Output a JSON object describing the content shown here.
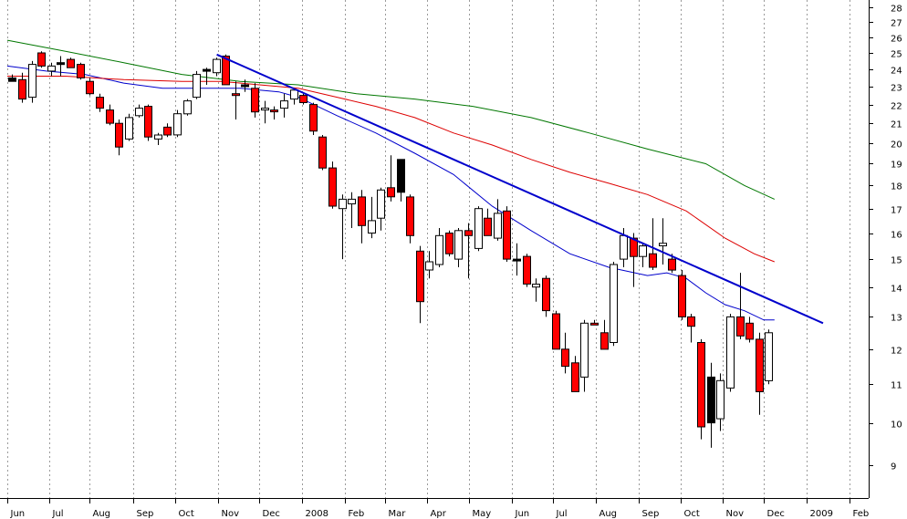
{
  "chart_data": {
    "type": "candlestick",
    "title": "",
    "xlabel": "",
    "ylabel": "",
    "y_scale": "log",
    "ylim": [
      8.3,
      28.5
    ],
    "y_ticks": [
      9,
      10,
      11,
      12,
      13,
      14,
      15,
      16,
      17,
      18,
      19,
      20,
      21,
      22,
      23,
      24,
      25,
      26,
      27,
      28
    ],
    "x_labels": [
      {
        "label": "Jun",
        "x": 0
      },
      {
        "label": "Jul",
        "x": 4.3
      },
      {
        "label": "Aug",
        "x": 8.5
      },
      {
        "label": "Sep",
        "x": 13.0
      },
      {
        "label": "Oct",
        "x": 17.3
      },
      {
        "label": "Nov",
        "x": 21.7
      },
      {
        "label": "Dec",
        "x": 26.0
      },
      {
        "label": "2008",
        "x": 30.4
      },
      {
        "label": "Feb",
        "x": 34.8
      },
      {
        "label": "Mar",
        "x": 38.9
      },
      {
        "label": "Apr",
        "x": 43.3
      },
      {
        "label": "May",
        "x": 47.6
      },
      {
        "label": "Jun",
        "x": 52.0
      },
      {
        "label": "Jul",
        "x": 56.3
      },
      {
        "label": "Aug",
        "x": 60.7
      },
      {
        "label": "Sep",
        "x": 65.1
      },
      {
        "label": "Oct",
        "x": 69.4
      },
      {
        "label": "Nov",
        "x": 73.8
      },
      {
        "label": "Dec",
        "x": 78.0
      },
      {
        "label": "2009",
        "x": 82.4
      },
      {
        "label": "Feb",
        "x": 86.8
      }
    ],
    "x_range": [
      0,
      89
    ],
    "grid": "vertical-dotted",
    "colors": {
      "up_body": "#ffffff",
      "down_body": "#ff0000",
      "outline": "#000000",
      "ma_short": "#0000cc",
      "ma_mid": "#dd0000",
      "ma_long": "#007700",
      "trendline": "#0000cc"
    },
    "candles": [
      {
        "x": 0.5,
        "o": 23.5,
        "h": 23.7,
        "l": 23.3,
        "c": 23.3,
        "color": "black"
      },
      {
        "x": 1.5,
        "o": 23.4,
        "h": 23.8,
        "l": 22.1,
        "c": 22.3,
        "color": "red"
      },
      {
        "x": 2.5,
        "o": 22.4,
        "h": 24.5,
        "l": 22.1,
        "c": 24.3,
        "color": "white"
      },
      {
        "x": 3.5,
        "o": 25.0,
        "h": 25.1,
        "l": 24.1,
        "c": 24.2,
        "color": "red"
      },
      {
        "x": 4.5,
        "o": 23.9,
        "h": 24.4,
        "l": 23.6,
        "c": 24.2,
        "color": "white"
      },
      {
        "x": 5.5,
        "o": 24.4,
        "h": 24.8,
        "l": 23.6,
        "c": 24.4,
        "color": "black"
      },
      {
        "x": 6.5,
        "o": 24.6,
        "h": 24.7,
        "l": 24.1,
        "c": 24.1,
        "color": "red"
      },
      {
        "x": 7.5,
        "o": 24.3,
        "h": 24.4,
        "l": 23.4,
        "c": 23.5,
        "color": "red"
      },
      {
        "x": 8.5,
        "o": 23.3,
        "h": 23.5,
        "l": 22.5,
        "c": 22.6,
        "color": "red"
      },
      {
        "x": 9.5,
        "o": 22.4,
        "h": 22.6,
        "l": 21.6,
        "c": 21.8,
        "color": "red"
      },
      {
        "x": 10.5,
        "o": 21.7,
        "h": 22.0,
        "l": 20.9,
        "c": 21.0,
        "color": "red"
      },
      {
        "x": 11.5,
        "o": 21.0,
        "h": 21.2,
        "l": 19.4,
        "c": 19.8,
        "color": "red"
      },
      {
        "x": 12.5,
        "o": 20.2,
        "h": 21.5,
        "l": 20.1,
        "c": 21.3,
        "color": "white"
      },
      {
        "x": 13.5,
        "o": 21.4,
        "h": 22.0,
        "l": 21.3,
        "c": 21.8,
        "color": "white"
      },
      {
        "x": 14.5,
        "o": 21.9,
        "h": 22.0,
        "l": 20.1,
        "c": 20.3,
        "color": "red"
      },
      {
        "x": 15.5,
        "o": 20.2,
        "h": 20.5,
        "l": 19.9,
        "c": 20.4,
        "color": "white"
      },
      {
        "x": 16.5,
        "o": 20.8,
        "h": 21.0,
        "l": 20.3,
        "c": 20.4,
        "color": "red"
      },
      {
        "x": 17.5,
        "o": 20.4,
        "h": 21.7,
        "l": 20.3,
        "c": 21.5,
        "color": "white"
      },
      {
        "x": 18.5,
        "o": 21.5,
        "h": 22.3,
        "l": 21.4,
        "c": 22.2,
        "color": "white"
      },
      {
        "x": 19.5,
        "o": 22.4,
        "h": 23.9,
        "l": 22.3,
        "c": 23.7,
        "color": "white"
      },
      {
        "x": 20.5,
        "o": 24.0,
        "h": 24.1,
        "l": 23.1,
        "c": 24.0,
        "color": "black"
      },
      {
        "x": 21.5,
        "o": 23.8,
        "h": 24.7,
        "l": 23.6,
        "c": 24.6,
        "color": "white"
      },
      {
        "x": 22.5,
        "o": 24.8,
        "h": 24.9,
        "l": 23.1,
        "c": 23.1,
        "color": "red"
      },
      {
        "x": 23.5,
        "o": 22.6,
        "h": 23.3,
        "l": 21.2,
        "c": 22.6,
        "color": "red"
      },
      {
        "x": 24.5,
        "o": 23.1,
        "h": 23.4,
        "l": 22.7,
        "c": 23.0,
        "color": "black"
      },
      {
        "x": 25.5,
        "o": 22.9,
        "h": 23.2,
        "l": 21.3,
        "c": 21.6,
        "color": "red"
      },
      {
        "x": 26.5,
        "o": 21.7,
        "h": 22.2,
        "l": 21.0,
        "c": 21.8,
        "color": "white"
      },
      {
        "x": 27.5,
        "o": 21.7,
        "h": 21.9,
        "l": 21.2,
        "c": 21.6,
        "color": "red"
      },
      {
        "x": 28.5,
        "o": 21.8,
        "h": 22.6,
        "l": 21.3,
        "c": 22.2,
        "color": "white"
      },
      {
        "x": 29.5,
        "o": 22.3,
        "h": 22.9,
        "l": 22.0,
        "c": 22.8,
        "color": "white"
      },
      {
        "x": 30.5,
        "o": 22.5,
        "h": 22.6,
        "l": 22.0,
        "c": 22.1,
        "color": "red"
      },
      {
        "x": 31.5,
        "o": 22.0,
        "h": 22.1,
        "l": 20.4,
        "c": 20.6,
        "color": "red"
      },
      {
        "x": 32.5,
        "o": 20.3,
        "h": 20.4,
        "l": 18.7,
        "c": 18.8,
        "color": "red"
      },
      {
        "x": 33.5,
        "o": 18.8,
        "h": 19.1,
        "l": 17.0,
        "c": 17.1,
        "color": "red"
      },
      {
        "x": 34.5,
        "o": 17.0,
        "h": 17.6,
        "l": 15.0,
        "c": 17.4,
        "color": "white"
      },
      {
        "x": 35.5,
        "o": 17.4,
        "h": 17.7,
        "l": 16.2,
        "c": 17.2,
        "color": "white"
      },
      {
        "x": 36.5,
        "o": 17.5,
        "h": 17.8,
        "l": 15.6,
        "c": 16.3,
        "color": "red"
      },
      {
        "x": 37.5,
        "o": 16.0,
        "h": 17.5,
        "l": 15.8,
        "c": 16.5,
        "color": "white"
      },
      {
        "x": 38.5,
        "o": 16.6,
        "h": 17.9,
        "l": 16.1,
        "c": 17.8,
        "color": "white"
      },
      {
        "x": 39.5,
        "o": 17.9,
        "h": 19.4,
        "l": 17.3,
        "c": 17.5,
        "color": "red"
      },
      {
        "x": 40.5,
        "o": 17.7,
        "h": 19.2,
        "l": 17.3,
        "c": 19.2,
        "color": "black"
      },
      {
        "x": 41.5,
        "o": 17.5,
        "h": 17.6,
        "l": 15.6,
        "c": 15.9,
        "color": "red"
      },
      {
        "x": 42.5,
        "o": 15.3,
        "h": 15.5,
        "l": 12.8,
        "c": 13.5,
        "color": "red"
      },
      {
        "x": 43.5,
        "o": 14.6,
        "h": 15.3,
        "l": 14.3,
        "c": 14.9,
        "color": "white"
      },
      {
        "x": 44.5,
        "o": 14.8,
        "h": 16.2,
        "l": 14.7,
        "c": 15.9,
        "color": "white"
      },
      {
        "x": 45.5,
        "o": 16.0,
        "h": 16.1,
        "l": 15.1,
        "c": 15.2,
        "color": "red"
      },
      {
        "x": 46.5,
        "o": 15.0,
        "h": 16.2,
        "l": 14.7,
        "c": 16.1,
        "color": "white"
      },
      {
        "x": 47.5,
        "o": 16.1,
        "h": 16.4,
        "l": 14.3,
        "c": 15.9,
        "color": "red"
      },
      {
        "x": 48.5,
        "o": 15.4,
        "h": 17.1,
        "l": 15.3,
        "c": 17.0,
        "color": "white"
      },
      {
        "x": 49.5,
        "o": 16.6,
        "h": 17.0,
        "l": 15.9,
        "c": 15.9,
        "color": "red"
      },
      {
        "x": 50.5,
        "o": 15.8,
        "h": 17.4,
        "l": 15.7,
        "c": 16.8,
        "color": "white"
      },
      {
        "x": 51.5,
        "o": 16.9,
        "h": 17.1,
        "l": 14.9,
        "c": 15.0,
        "color": "red"
      },
      {
        "x": 52.5,
        "o": 15.0,
        "h": 15.6,
        "l": 14.4,
        "c": 15.0,
        "color": "black"
      },
      {
        "x": 53.5,
        "o": 15.1,
        "h": 15.2,
        "l": 14.0,
        "c": 14.1,
        "color": "red"
      },
      {
        "x": 54.5,
        "o": 14.1,
        "h": 14.3,
        "l": 13.5,
        "c": 14.0,
        "color": "white"
      },
      {
        "x": 55.5,
        "o": 14.3,
        "h": 14.4,
        "l": 13.0,
        "c": 13.2,
        "color": "red"
      },
      {
        "x": 56.5,
        "o": 13.1,
        "h": 13.2,
        "l": 12.0,
        "c": 12.0,
        "color": "red"
      },
      {
        "x": 57.5,
        "o": 12.0,
        "h": 12.5,
        "l": 11.3,
        "c": 11.5,
        "color": "red"
      },
      {
        "x": 58.5,
        "o": 11.6,
        "h": 11.8,
        "l": 10.8,
        "c": 10.8,
        "color": "red"
      },
      {
        "x": 59.5,
        "o": 11.2,
        "h": 12.9,
        "l": 10.8,
        "c": 12.8,
        "color": "white"
      },
      {
        "x": 60.5,
        "o": 12.8,
        "h": 12.9,
        "l": 12.8,
        "c": 12.8,
        "color": "red"
      },
      {
        "x": 61.5,
        "o": 12.5,
        "h": 12.9,
        "l": 12.1,
        "c": 12.0,
        "color": "red"
      },
      {
        "x": 62.5,
        "o": 12.2,
        "h": 14.9,
        "l": 12.1,
        "c": 14.8,
        "color": "white"
      },
      {
        "x": 63.5,
        "o": 15.0,
        "h": 16.2,
        "l": 14.7,
        "c": 15.9,
        "color": "white"
      },
      {
        "x": 64.5,
        "o": 15.8,
        "h": 16.0,
        "l": 14.0,
        "c": 15.1,
        "color": "red"
      },
      {
        "x": 65.5,
        "o": 15.1,
        "h": 15.6,
        "l": 14.7,
        "c": 15.5,
        "color": "white"
      },
      {
        "x": 66.5,
        "o": 15.2,
        "h": 16.6,
        "l": 14.6,
        "c": 14.7,
        "color": "red"
      },
      {
        "x": 67.5,
        "o": 15.5,
        "h": 16.6,
        "l": 14.8,
        "c": 15.6,
        "color": "white"
      },
      {
        "x": 68.5,
        "o": 15.0,
        "h": 15.2,
        "l": 14.5,
        "c": 14.6,
        "color": "red"
      },
      {
        "x": 69.5,
        "o": 14.4,
        "h": 14.6,
        "l": 12.9,
        "c": 13.0,
        "color": "red"
      },
      {
        "x": 70.5,
        "o": 13.0,
        "h": 13.1,
        "l": 12.2,
        "c": 12.7,
        "color": "red"
      },
      {
        "x": 71.5,
        "o": 12.2,
        "h": 12.3,
        "l": 9.6,
        "c": 9.9,
        "color": "red"
      },
      {
        "x": 72.5,
        "o": 10.0,
        "h": 11.6,
        "l": 9.4,
        "c": 11.2,
        "color": "black"
      },
      {
        "x": 73.5,
        "o": 10.1,
        "h": 11.3,
        "l": 9.8,
        "c": 11.1,
        "color": "white"
      },
      {
        "x": 74.5,
        "o": 10.9,
        "h": 13.1,
        "l": 10.8,
        "c": 13.0,
        "color": "white"
      },
      {
        "x": 75.5,
        "o": 13.0,
        "h": 14.5,
        "l": 12.3,
        "c": 12.4,
        "color": "red"
      },
      {
        "x": 76.5,
        "o": 12.8,
        "h": 13.0,
        "l": 12.2,
        "c": 12.3,
        "color": "red"
      },
      {
        "x": 77.5,
        "o": 12.3,
        "h": 12.5,
        "l": 10.2,
        "c": 10.8,
        "color": "red"
      },
      {
        "x": 78.5,
        "o": 11.1,
        "h": 12.6,
        "l": 11.0,
        "c": 12.5,
        "color": "white"
      }
    ],
    "moving_averages": [
      {
        "color": "#0000cc",
        "points": [
          [
            0,
            24.2
          ],
          [
            4,
            23.9
          ],
          [
            8,
            23.7
          ],
          [
            12,
            23.2
          ],
          [
            16,
            22.9
          ],
          [
            20,
            22.9
          ],
          [
            24,
            22.9
          ],
          [
            28,
            22.7
          ],
          [
            30,
            22.4
          ],
          [
            34,
            21.4
          ],
          [
            38,
            20.5
          ],
          [
            42,
            19.5
          ],
          [
            46,
            18.5
          ],
          [
            50,
            17.1
          ],
          [
            54,
            16.1
          ],
          [
            58,
            15.2
          ],
          [
            62,
            14.7
          ],
          [
            66,
            14.4
          ],
          [
            68,
            14.5
          ],
          [
            70,
            14.3
          ],
          [
            72,
            13.8
          ],
          [
            74,
            13.4
          ],
          [
            76,
            13.2
          ],
          [
            78,
            12.9
          ],
          [
            79.1,
            12.9
          ]
        ]
      },
      {
        "color": "#dd0000",
        "points": [
          [
            0,
            23.6
          ],
          [
            6,
            23.6
          ],
          [
            12,
            23.4
          ],
          [
            18,
            23.3
          ],
          [
            22,
            23.3
          ],
          [
            26,
            23.1
          ],
          [
            30,
            22.9
          ],
          [
            34,
            22.4
          ],
          [
            38,
            21.9
          ],
          [
            42,
            21.3
          ],
          [
            46,
            20.5
          ],
          [
            50,
            19.9
          ],
          [
            54,
            19.2
          ],
          [
            58,
            18.6
          ],
          [
            62,
            18.1
          ],
          [
            66,
            17.6
          ],
          [
            70,
            16.9
          ],
          [
            74,
            15.8
          ],
          [
            77,
            15.2
          ],
          [
            79.1,
            14.9
          ]
        ]
      },
      {
        "color": "#007700",
        "points": [
          [
            0,
            25.8
          ],
          [
            6,
            25.1
          ],
          [
            12,
            24.4
          ],
          [
            18,
            23.7
          ],
          [
            24,
            23.3
          ],
          [
            30,
            23.1
          ],
          [
            36,
            22.6
          ],
          [
            42,
            22.3
          ],
          [
            48,
            21.9
          ],
          [
            54,
            21.3
          ],
          [
            60,
            20.5
          ],
          [
            66,
            19.7
          ],
          [
            72,
            19.0
          ],
          [
            76,
            18.0
          ],
          [
            79.1,
            17.4
          ]
        ]
      }
    ],
    "trendline": {
      "color": "#0000cc",
      "points": [
        [
          21.6,
          24.9
        ],
        [
          84.1,
          12.8
        ]
      ]
    }
  }
}
